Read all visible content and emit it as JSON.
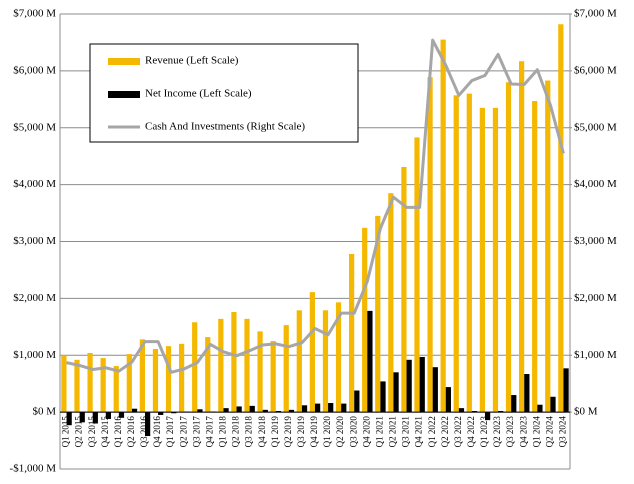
{
  "chart_data": {
    "type": "bar",
    "categories": [
      "Q1 2015",
      "Q2 2015",
      "Q3 2015",
      "Q4 2015",
      "Q1 2016",
      "Q2 2016",
      "Q3 2016",
      "Q4 2016",
      "Q1 2017",
      "Q2 2017",
      "Q3 2017",
      "Q4 2017",
      "Q1 2018",
      "Q2 2018",
      "Q3 2018",
      "Q4 2018",
      "Q1 2019",
      "Q2 2019",
      "Q3 2019",
      "Q4 2019",
      "Q1 2020",
      "Q2 2020",
      "Q3 2020",
      "Q4 2020",
      "Q1 2021",
      "Q2 2021",
      "Q3 2021",
      "Q4 2021",
      "Q1 2022",
      "Q2 2022",
      "Q3 2022",
      "Q4 2022",
      "Q1 2023",
      "Q2 2023",
      "Q3 2023",
      "Q4 2023",
      "Q1 2024",
      "Q2 2024",
      "Q3 2024"
    ],
    "series": [
      {
        "name": "Revenue (Left Scale)",
        "type": "bar",
        "color": "#f5b800",
        "values": [
          1000,
          920,
          1040,
          950,
          810,
          1020,
          1280,
          1110,
          1160,
          1200,
          1580,
          1320,
          1640,
          1760,
          1640,
          1420,
          1250,
          1530,
          1790,
          2110,
          1790,
          1930,
          2780,
          3240,
          3450,
          3850,
          4310,
          4830,
          5890,
          6550,
          5570,
          5600,
          5350,
          5350,
          5800,
          6170,
          5470,
          5830,
          6820
        ]
      },
      {
        "name": "Net Income (Left Scale)",
        "type": "bar",
        "color": "#000000",
        "values": [
          -230,
          -180,
          -200,
          -120,
          -100,
          60,
          -420,
          -50,
          -20,
          10,
          50,
          10,
          70,
          100,
          110,
          40,
          20,
          40,
          120,
          150,
          160,
          150,
          380,
          1780,
          540,
          700,
          920,
          970,
          790,
          440,
          70,
          20,
          -140,
          20,
          300,
          670,
          130,
          270,
          770
        ]
      },
      {
        "name": "Cash And Investments (Right Scale)",
        "type": "line",
        "axis": "y2",
        "color": "#a6a6a6",
        "values": [
          870,
          820,
          750,
          780,
          720,
          880,
          1240,
          1240,
          700,
          760,
          870,
          1190,
          1060,
          990,
          1080,
          1180,
          1200,
          1150,
          1220,
          1470,
          1360,
          1740,
          1740,
          2300,
          3230,
          3780,
          3600,
          3600,
          6540,
          6100,
          5570,
          5830,
          5920,
          6290,
          5770,
          5760,
          6020,
          5400,
          4550
        ]
      }
    ],
    "ylim": [
      -1000,
      7000
    ],
    "yticks": [
      {
        "value": -1000,
        "label": "-$1,000 M"
      },
      {
        "value": 0,
        "label": "$0 M"
      },
      {
        "value": 1000,
        "label": "$1,000 M"
      },
      {
        "value": 2000,
        "label": "$2,000 M"
      },
      {
        "value": 3000,
        "label": "$3,000 M"
      },
      {
        "value": 4000,
        "label": "$4,000 M"
      },
      {
        "value": 5000,
        "label": "$5,000 M"
      },
      {
        "value": 6000,
        "label": "$6,000 M"
      },
      {
        "value": 7000,
        "label": "$7,000 M"
      }
    ],
    "y2lim": [
      -1000,
      7000
    ],
    "y2ticks": [
      {
        "value": 0,
        "label": "$0 M"
      },
      {
        "value": 1000,
        "label": "$1,000 M"
      },
      {
        "value": 2000,
        "label": "$2,000 M"
      },
      {
        "value": 3000,
        "label": "$3,000 M"
      },
      {
        "value": 4000,
        "label": "$4,000 M"
      },
      {
        "value": 5000,
        "label": "$5,000 M"
      },
      {
        "value": 6000,
        "label": "$6,000 M"
      },
      {
        "value": 7000,
        "label": "$7,000 M"
      }
    ],
    "grid": true,
    "legend": "top-left"
  }
}
